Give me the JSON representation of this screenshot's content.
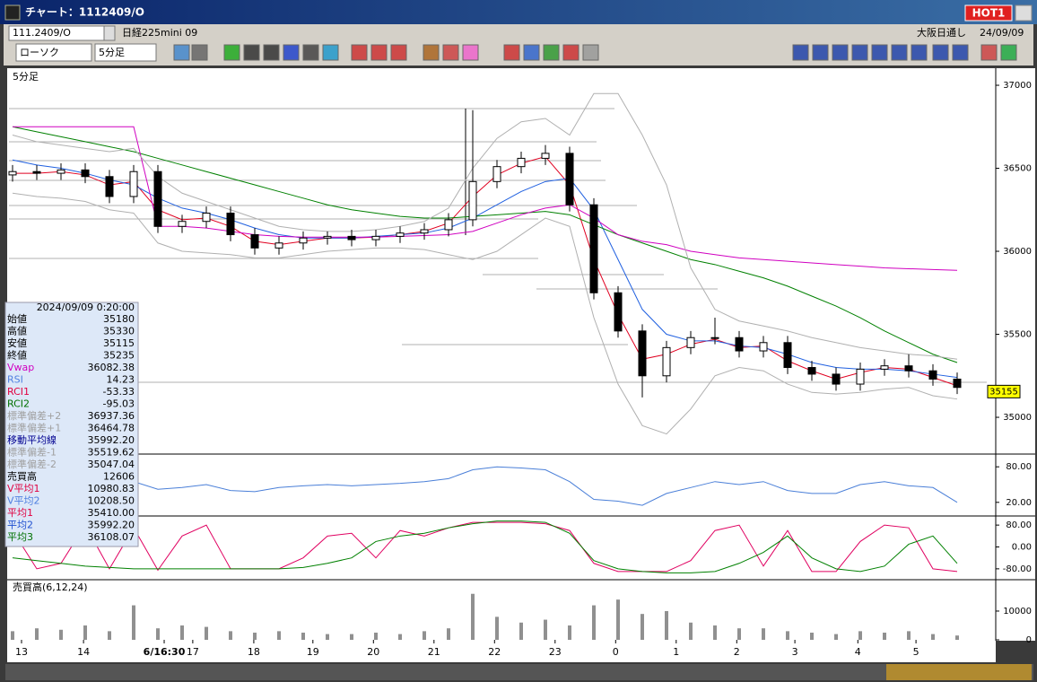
{
  "window": {
    "title": "チャート：1112409/O",
    "hot": "HOT1"
  },
  "toolbar": {
    "symbol": "111.2409/O",
    "contract": "日経225mini 09",
    "market": "大阪日通し",
    "date": "24/09/09",
    "chart_kind": "ローソク",
    "interval": "5分足"
  },
  "info_panel": {
    "timestamp": "2024/09/09 0:20:00",
    "rows": [
      {
        "label": "始値",
        "value": "35180",
        "color": "#000000"
      },
      {
        "label": "高値",
        "value": "35330",
        "color": "#000000"
      },
      {
        "label": "安値",
        "value": "35115",
        "color": "#000000"
      },
      {
        "label": "終値",
        "value": "35235",
        "color": "#000000"
      },
      {
        "label": "Vwap",
        "value": "36082.38",
        "color": "#d000c0"
      },
      {
        "label": "RSI",
        "value": "14.23",
        "color": "#5080e0"
      },
      {
        "label": "RCI1",
        "value": "-53.33",
        "color": "#e00040"
      },
      {
        "label": "RCI2",
        "value": "-95.03",
        "color": "#007000"
      },
      {
        "label": "標準偏差+2",
        "value": "36937.36",
        "color": "#a0a0a0"
      },
      {
        "label": "標準偏差+1",
        "value": "36464.78",
        "color": "#a0a0a0"
      },
      {
        "label": "移動平均線",
        "value": "35992.20",
        "color": "#000090"
      },
      {
        "label": "標準偏差-1",
        "value": "35519.62",
        "color": "#a0a0a0"
      },
      {
        "label": "標準偏差-2",
        "value": "35047.04",
        "color": "#a0a0a0"
      },
      {
        "label": "売買高",
        "value": "12606",
        "color": "#000000"
      },
      {
        "label": "V平均1",
        "value": "10980.83",
        "color": "#e00040"
      },
      {
        "label": "V平均2",
        "value": "10208.50",
        "color": "#5080e0"
      },
      {
        "label": "平均1",
        "value": "35410.00",
        "color": "#e00040"
      },
      {
        "label": "平均2",
        "value": "35992.20",
        "color": "#2050d0"
      },
      {
        "label": "平均3",
        "value": "36108.07",
        "color": "#007000"
      }
    ]
  },
  "chart_data": [
    {
      "type": "candlestick",
      "title": "5分足",
      "categories": [
        null,
        null,
        null,
        null,
        null,
        null,
        null,
        null,
        null,
        null,
        null,
        null,
        null,
        null,
        null,
        null,
        null,
        null,
        null,
        null,
        null,
        null,
        null,
        null,
        null,
        null,
        null,
        null,
        null,
        null,
        null,
        null,
        null,
        null,
        null,
        null,
        null,
        null,
        null,
        null
      ],
      "xticks": [
        {
          "value": 0.37,
          "label": "13"
        },
        {
          "value": 2.93,
          "label": "14"
        },
        {
          "value": 6.26,
          "label": "6/16:30"
        },
        {
          "value": 7.44,
          "label": "17"
        },
        {
          "value": 9.96,
          "label": "18"
        },
        {
          "value": 12.4,
          "label": "19"
        },
        {
          "value": 14.9,
          "label": "20"
        },
        {
          "value": 17.4,
          "label": "21"
        },
        {
          "value": 19.9,
          "label": "22"
        },
        {
          "value": 22.4,
          "label": "23"
        },
        {
          "value": 24.9,
          "label": "0"
        },
        {
          "value": 27.4,
          "label": "1"
        },
        {
          "value": 29.9,
          "label": "2"
        },
        {
          "value": 32.3,
          "label": "3"
        },
        {
          "value": 34.9,
          "label": "4"
        },
        {
          "value": 37.3,
          "label": "5"
        }
      ],
      "ohlc": {
        "open": [
          36460,
          36480,
          36470,
          36490,
          36450,
          36330,
          36480,
          36150,
          36180,
          36230,
          36100,
          36020,
          36050,
          36080,
          36090,
          36070,
          36090,
          36110,
          36130,
          36190,
          36420,
          36510,
          36560,
          36590,
          36280,
          35750,
          35520,
          35250,
          35420,
          35480,
          35480,
          35400,
          35450,
          35300,
          35260,
          35200,
          35290,
          35310,
          35280,
          35230
        ],
        "high": [
          36520,
          36520,
          36530,
          36530,
          36490,
          36520,
          36520,
          36220,
          36270,
          36270,
          36140,
          36090,
          36120,
          36120,
          36130,
          36130,
          36150,
          36170,
          36230,
          36850,
          36550,
          36600,
          36640,
          36630,
          36320,
          35790,
          35560,
          35460,
          35520,
          35600,
          35520,
          35490,
          35490,
          35340,
          35300,
          35330,
          35350,
          35380,
          35320,
          35270
        ],
        "low": [
          36420,
          36430,
          36430,
          36410,
          36290,
          36290,
          36110,
          36110,
          36140,
          36060,
          35980,
          35980,
          36010,
          36040,
          36030,
          36030,
          36050,
          36070,
          36090,
          36150,
          36380,
          36470,
          36520,
          36240,
          35710,
          35480,
          35120,
          35210,
          35380,
          35440,
          35360,
          35360,
          35260,
          35220,
          35160,
          35160,
          35250,
          35240,
          35190,
          35140
        ],
        "close": [
          36480,
          36470,
          36490,
          36450,
          36330,
          36480,
          36150,
          36180,
          36230,
          36100,
          36020,
          36050,
          36080,
          36090,
          36070,
          36090,
          36110,
          36130,
          36190,
          36420,
          36510,
          36560,
          36590,
          36280,
          35750,
          35520,
          35250,
          35420,
          35480,
          35480,
          35400,
          35450,
          35300,
          35260,
          35200,
          35290,
          35310,
          35280,
          35230,
          35180
        ]
      },
      "lines": [
        {
          "color": "#e00020",
          "values": [
            36470,
            36470,
            36480,
            36460,
            36400,
            36420,
            36250,
            36190,
            36200,
            36150,
            36060,
            36040,
            36060,
            36080,
            36080,
            36085,
            36100,
            36120,
            36170,
            36330,
            36460,
            36530,
            36570,
            36400,
            35950,
            35620,
            35350,
            35380,
            35440,
            35470,
            35420,
            35430,
            35340,
            35280,
            35230,
            35270,
            35300,
            35290,
            35240,
            35190
          ]
        },
        {
          "color": "#2060e0",
          "values": [
            36550,
            36520,
            36500,
            36470,
            36430,
            36400,
            36320,
            36260,
            36230,
            36190,
            36140,
            36100,
            36080,
            36080,
            36080,
            36090,
            36100,
            36110,
            36140,
            36200,
            36280,
            36360,
            36420,
            36440,
            36250,
            35950,
            35650,
            35500,
            35460,
            35460,
            35430,
            35420,
            35380,
            35330,
            35300,
            35290,
            35290,
            35280,
            35260,
            35240
          ]
        },
        {
          "color": "#008000",
          "values": [
            36750,
            36720,
            36690,
            36660,
            36630,
            36600,
            36560,
            36520,
            36480,
            36440,
            36400,
            36360,
            36320,
            36280,
            36250,
            36230,
            36210,
            36200,
            36200,
            36210,
            36220,
            36230,
            36240,
            36220,
            36160,
            36100,
            36050,
            36000,
            35950,
            35920,
            35880,
            35840,
            35790,
            35730,
            35670,
            35600,
            35520,
            35450,
            35380,
            35330
          ]
        },
        {
          "color": "#d000c0",
          "values": [
            36750,
            36750,
            36750,
            36750,
            36750,
            36750,
            36150,
            36150,
            36140,
            36120,
            36100,
            36090,
            36085,
            36085,
            36085,
            36085,
            36090,
            36095,
            36100,
            36120,
            36170,
            36220,
            36260,
            36280,
            36200,
            36100,
            36060,
            36040,
            36000,
            35980,
            35960,
            35950,
            35940,
            35930,
            35920,
            35910,
            35900,
            35895,
            35890,
            35885
          ]
        },
        {
          "color": "#b0b0b0",
          "values": [
            36700,
            36660,
            36640,
            36620,
            36600,
            36620,
            36450,
            36350,
            36300,
            36250,
            36200,
            36150,
            36130,
            36120,
            36120,
            36130,
            36150,
            36180,
            36260,
            36500,
            36680,
            36780,
            36800,
            36700,
            36950,
            36950,
            36700,
            36400,
            35900,
            35650,
            35580,
            35550,
            35520,
            35480,
            35450,
            35420,
            35400,
            35380,
            35370,
            35350
          ]
        },
        {
          "color": "#b0b0b0",
          "values": [
            36350,
            36330,
            36320,
            36300,
            36250,
            36230,
            36050,
            36000,
            35990,
            35980,
            35960,
            35960,
            35980,
            36000,
            36010,
            36020,
            36020,
            36010,
            35980,
            35950,
            36000,
            36100,
            36200,
            36150,
            35600,
            35200,
            34950,
            34900,
            35050,
            35250,
            35300,
            35280,
            35200,
            35150,
            35140,
            35150,
            35170,
            35180,
            35130,
            35110
          ]
        }
      ],
      "ylim": [
        34784,
        37092
      ],
      "yticks": [
        35000,
        35500,
        36000,
        36500,
        37000
      ],
      "last_price": 35155
    },
    {
      "type": "line",
      "ylim": [
        0,
        100
      ],
      "yticks": [
        {
          "value": 20,
          "label": "20.00"
        },
        {
          "value": 80,
          "label": "80.00"
        }
      ],
      "lines": [
        {
          "color": "#4a7fd8",
          "values": [
            50,
            48,
            52,
            50,
            45,
            55,
            42,
            45,
            50,
            40,
            38,
            45,
            48,
            50,
            48,
            50,
            52,
            55,
            60,
            75,
            80,
            78,
            75,
            55,
            25,
            22,
            15,
            35,
            45,
            55,
            50,
            55,
            40,
            35,
            35,
            50,
            55,
            48,
            45,
            20
          ]
        }
      ]
    },
    {
      "type": "line",
      "ylim": [
        -110,
        110
      ],
      "yticks": [
        {
          "value": 80,
          "label": "80.00"
        },
        {
          "value": 0,
          "label": "0.00"
        },
        {
          "value": -80,
          "label": "-80.00"
        }
      ],
      "lines": [
        {
          "color": "#e00060",
          "values": [
            60,
            -80,
            -60,
            80,
            -80,
            70,
            -85,
            40,
            80,
            -80,
            -80,
            -80,
            -40,
            40,
            50,
            -40,
            60,
            40,
            70,
            90,
            90,
            90,
            85,
            60,
            -60,
            -90,
            -90,
            -90,
            -50,
            60,
            80,
            -70,
            60,
            -90,
            -90,
            20,
            80,
            70,
            -80,
            -90
          ]
        },
        {
          "color": "#008000",
          "values": [
            -40,
            -50,
            -60,
            -70,
            -75,
            -80,
            -80,
            -80,
            -80,
            -80,
            -80,
            -80,
            -75,
            -60,
            -40,
            20,
            40,
            50,
            70,
            85,
            95,
            95,
            90,
            50,
            -50,
            -80,
            -90,
            -95,
            -95,
            -90,
            -60,
            -20,
            40,
            -40,
            -80,
            -90,
            -70,
            10,
            40,
            -60
          ]
        }
      ]
    },
    {
      "type": "bar",
      "title": "売買高(6,12,24)",
      "ylim": [
        0,
        20600
      ],
      "yticks": [
        0,
        10000
      ],
      "color": "#909090",
      "values": [
        3000,
        4000,
        3500,
        5000,
        3000,
        12000,
        4000,
        5000,
        4500,
        3000,
        2500,
        3000,
        2500,
        2000,
        2000,
        2500,
        2000,
        3000,
        4000,
        16000,
        8000,
        6000,
        7000,
        5000,
        12000,
        14000,
        9000,
        10000,
        6000,
        5000,
        4000,
        4000,
        3000,
        2500,
        2000,
        3000,
        2500,
        3000,
        2000,
        1500
      ]
    }
  ]
}
